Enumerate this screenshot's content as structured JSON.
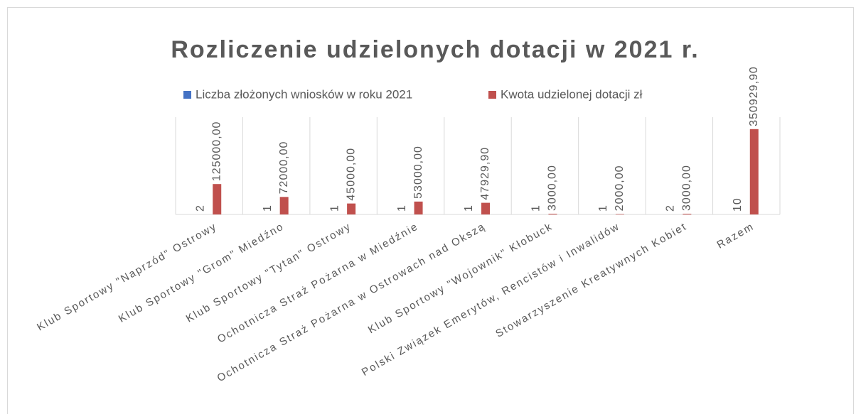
{
  "chart_data": {
    "type": "bar",
    "title": "Rozliczenie udzielonych dotacji w 2021 r.",
    "categories": [
      "Klub Sportowy \"Naprzód\" Ostrowy",
      "Klub Sportowy \"Grom\" Miedźno",
      "Klub Sportowy \"Tytan\" Ostrowy",
      "Ochotnicza Straż Pożarna w Miedźnie",
      "Ochotnicza Straż Pożarna w Ostrowach nad Okszą",
      "Klub Sportowy \"Wojownik\" Kłobuck",
      "Polski Związek Emerytów, Rencistów i Inwalidów",
      "Stowarzyszenie Kreatywnych Kobiet",
      "Razem"
    ],
    "series": [
      {
        "name": "Liczba złożonych wniosków w roku 2021",
        "color": "#4472c4",
        "values": [
          2,
          1,
          1,
          1,
          1,
          1,
          1,
          2,
          10
        ]
      },
      {
        "name": "Kwota udzielonej dotacji zł",
        "color": "#c0504d",
        "values": [
          125000,
          72000,
          45000,
          53000,
          47929.9,
          3000,
          2000,
          3000,
          350929.9
        ],
        "value_labels": [
          "125000,00",
          "72000,00",
          "45000,00",
          "53000,00",
          "47929,90",
          "3000,00",
          "2000,00",
          "3000,00",
          "350929,90"
        ]
      }
    ],
    "ylim": [
      0,
      400000
    ]
  }
}
